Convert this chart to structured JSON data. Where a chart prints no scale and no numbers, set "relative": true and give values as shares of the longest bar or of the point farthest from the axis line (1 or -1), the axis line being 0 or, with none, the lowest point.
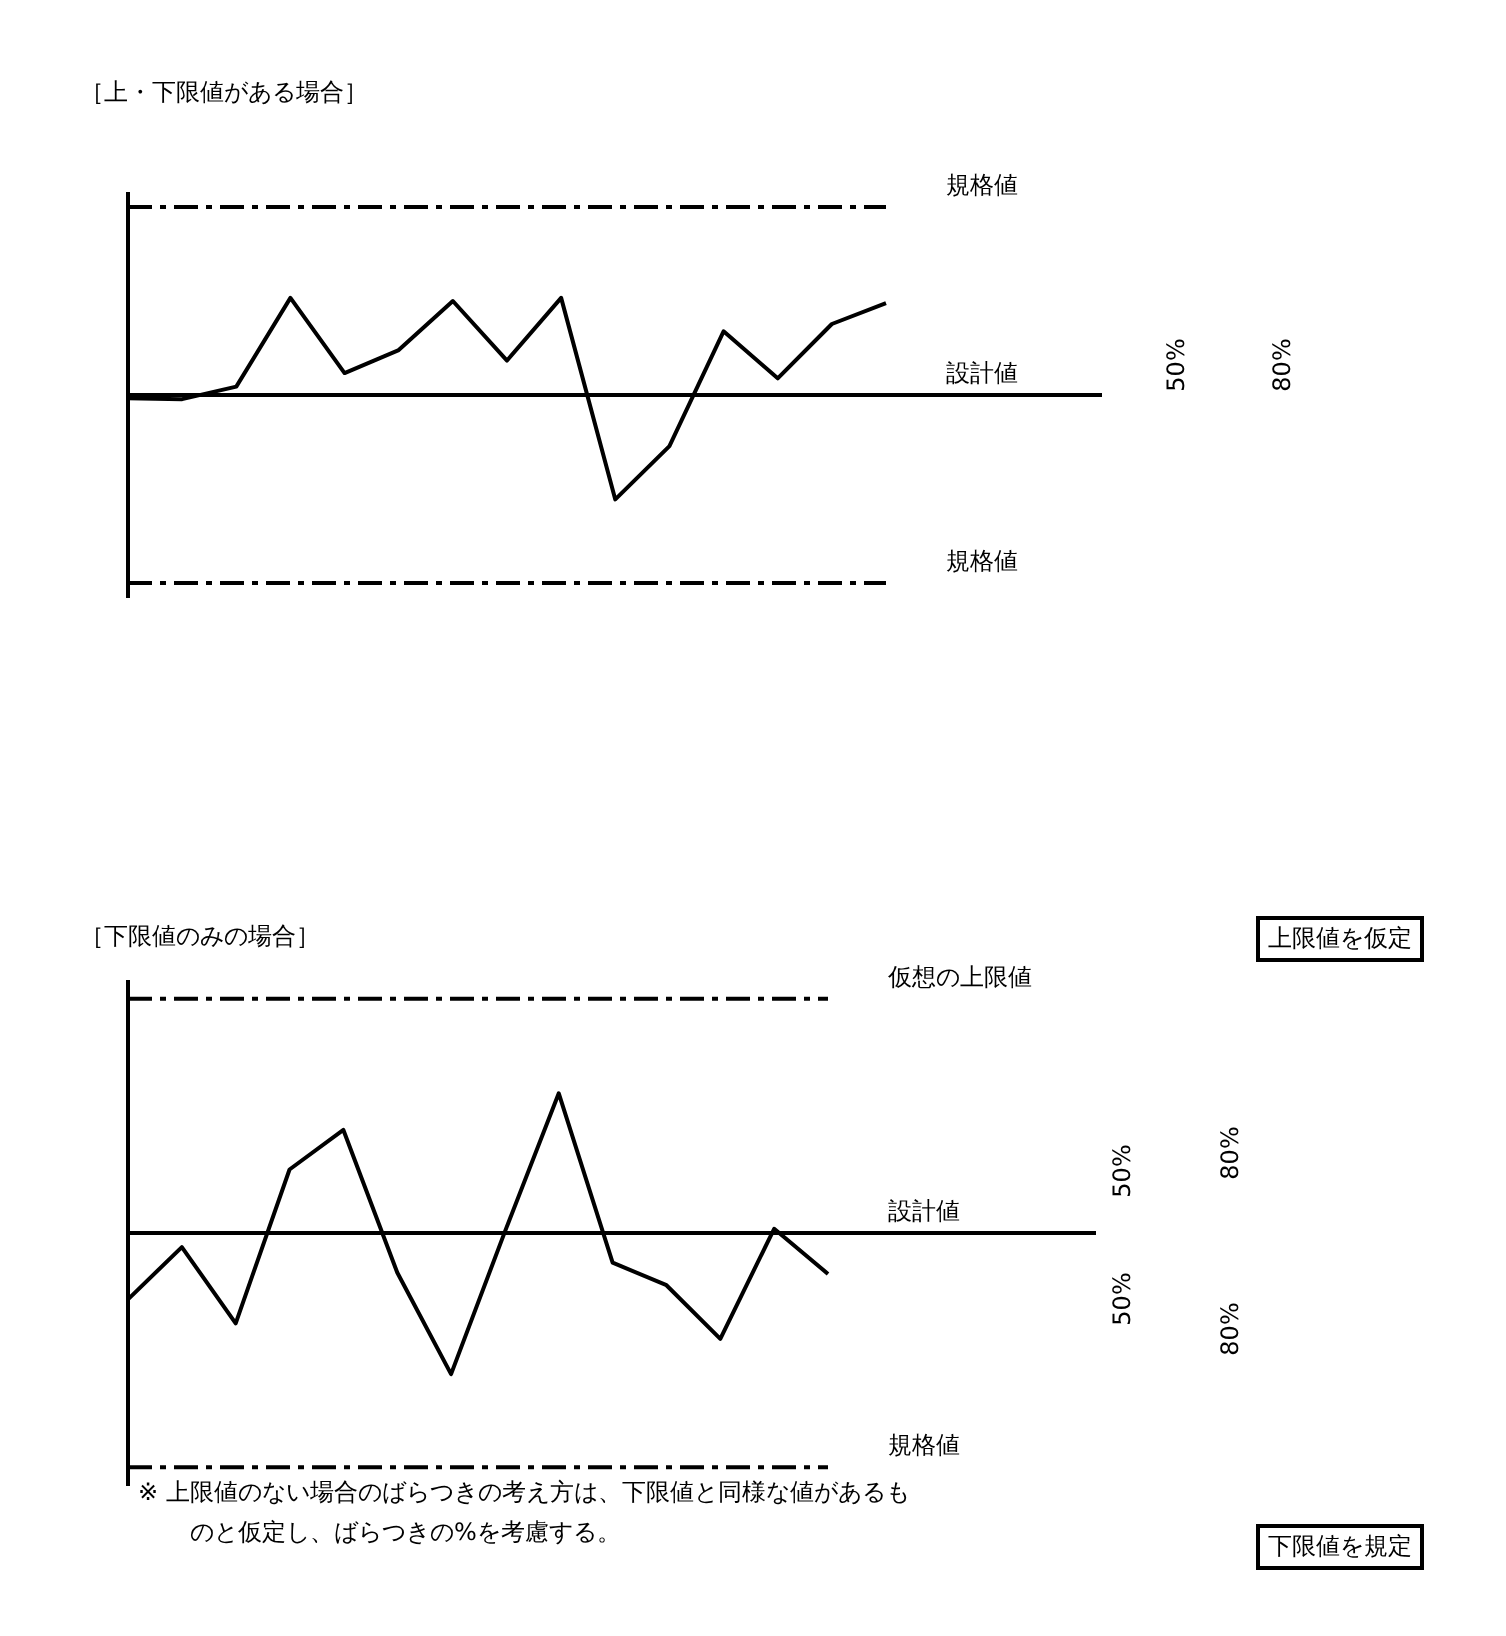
{
  "chart_data": [
    {
      "type": "line",
      "title": "［上・下限値がある場合］",
      "relative": true,
      "line_style": "solid",
      "categories": [
        null,
        null,
        null,
        null,
        null,
        null,
        null,
        null,
        null,
        null,
        null,
        null,
        null,
        null,
        null
      ],
      "series": [
        {
          "color": "#000000",
          "values": [
            -0.03,
            -0.04,
            0.08,
            0.93,
            0.21,
            0.43,
            0.9,
            0.33,
            0.93,
            -1,
            -0.49,
            0.61,
            0.16,
            0.68,
            0.88
          ]
        }
      ],
      "ref_lines": [
        {
          "axis": "y",
          "value": 1.8,
          "label": "規格値",
          "line_style": "dashed",
          "color": "#000000"
        },
        {
          "axis": "y",
          "value": 0,
          "label": "設計値",
          "line_style": "solid",
          "color": "#000000"
        },
        {
          "axis": "y",
          "value": -1.8,
          "label": "規格値",
          "line_style": "dashed",
          "color": "#000000"
        }
      ],
      "annotations": [
        "50%",
        "80%"
      ]
    },
    {
      "type": "line",
      "title": "［下限値のみの場合］",
      "relative": true,
      "line_style": "solid",
      "categories": [
        null,
        null,
        null,
        null,
        null,
        null,
        null,
        null,
        null,
        null,
        null,
        null,
        null,
        null
      ],
      "series": [
        {
          "color": "#000000",
          "values": [
            -0.47,
            -0.1,
            -0.64,
            0.45,
            0.73,
            -0.28,
            -1,
            0.01,
            0.99,
            -0.21,
            -0.37,
            -0.75,
            0.03,
            -0.29
          ]
        }
      ],
      "ref_lines": [
        {
          "axis": "y",
          "value": 1.66,
          "label": "仮想の上限値",
          "line_style": "dashed",
          "color": "#000000"
        },
        {
          "axis": "y",
          "value": 0,
          "label": "設計値",
          "line_style": "solid",
          "color": "#000000"
        },
        {
          "axis": "y",
          "value": -1.66,
          "label": "規格値",
          "line_style": "dashed",
          "color": "#000000"
        }
      ],
      "annotations": [
        "50%",
        "80%",
        "50%",
        "80%",
        "上限値を仮定",
        "下限値を規定",
        "※ 上限値のない場合のばらつきの考え方は、下限値と同様な値があるものと仮定し、ばらつきの%を考慮する。"
      ]
    }
  ]
}
